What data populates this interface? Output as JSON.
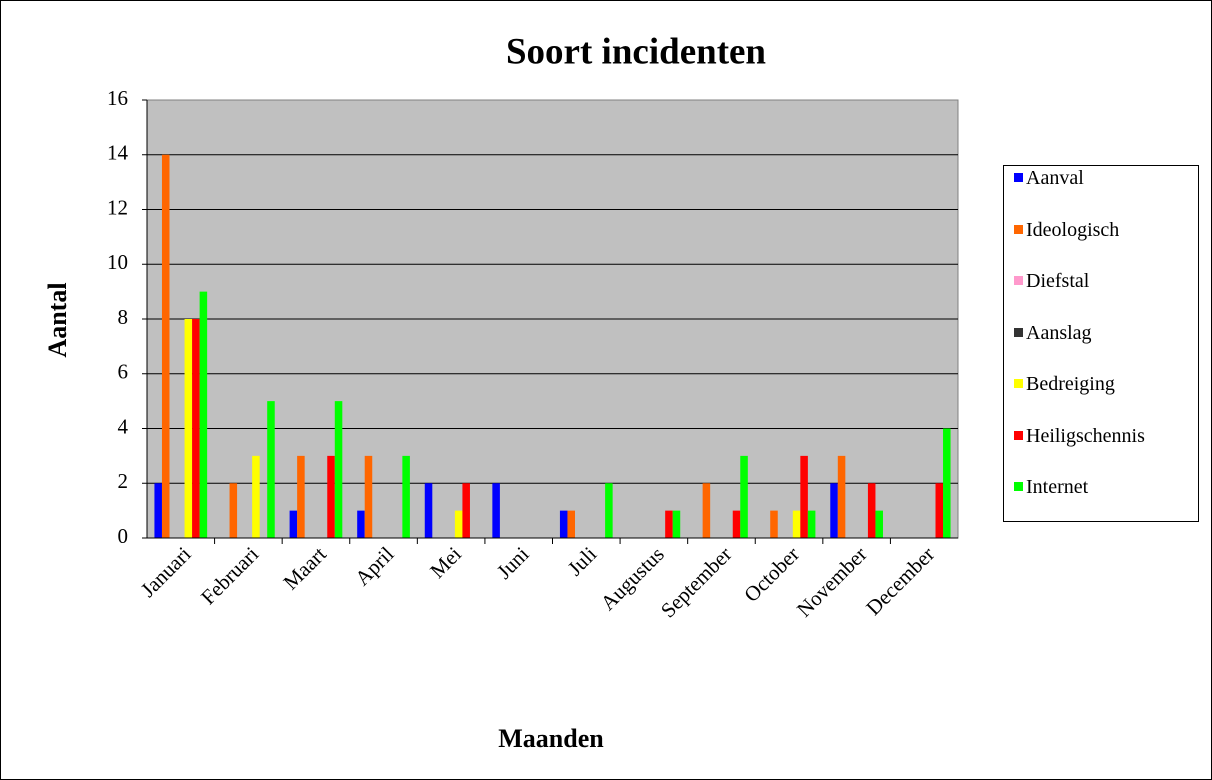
{
  "chart_data": {
    "type": "bar",
    "title": "Soort incidenten",
    "x_label": "Maanden",
    "y_label": "Aantal",
    "categories": [
      "Januari",
      "Februari",
      "Maart",
      "April",
      "Mei",
      "Juni",
      "Juli",
      "Augustus",
      "September",
      "October",
      "November",
      "December"
    ],
    "series": [
      {
        "name": "Aanval",
        "color": "#0000ff",
        "values": [
          2,
          0,
          1,
          1,
          2,
          2,
          1,
          0,
          0,
          0,
          2,
          0
        ]
      },
      {
        "name": "Ideologisch",
        "color": "#ff6600",
        "values": [
          14,
          2,
          3,
          3,
          0,
          0,
          1,
          0,
          2,
          1,
          3,
          0
        ]
      },
      {
        "name": "Diefstal",
        "color": "#ff99cc",
        "values": [
          0,
          0,
          0,
          0,
          0,
          0,
          0,
          0,
          0,
          0,
          0,
          0
        ]
      },
      {
        "name": "Aanslag",
        "color": "#333333",
        "values": [
          0,
          0,
          0,
          0,
          0,
          0,
          0,
          0,
          0,
          0,
          0,
          0
        ]
      },
      {
        "name": "Bedreiging",
        "color": "#ffff00",
        "values": [
          8,
          3,
          0,
          0,
          1,
          0,
          0,
          0,
          0,
          1,
          0,
          0
        ]
      },
      {
        "name": "Heiligschennis",
        "color": "#ff0000",
        "values": [
          8,
          0,
          3,
          0,
          2,
          0,
          0,
          1,
          1,
          3,
          2,
          2
        ]
      },
      {
        "name": "Internet",
        "color": "#00ff00",
        "values": [
          9,
          5,
          5,
          3,
          0,
          0,
          2,
          1,
          3,
          1,
          1,
          4
        ]
      }
    ],
    "ylim": [
      0,
      16
    ],
    "yticks": [
      0,
      2,
      4,
      6,
      8,
      10,
      12,
      14,
      16
    ],
    "grid": true,
    "legend": "right"
  }
}
